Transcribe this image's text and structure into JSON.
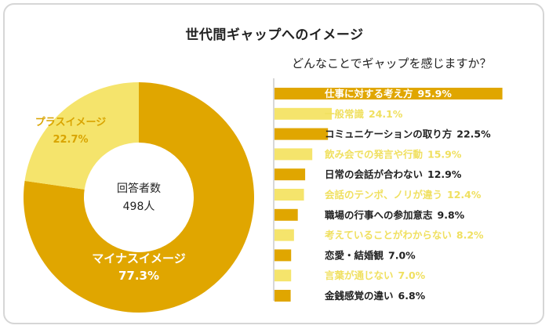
{
  "title": "世代間ギャップへのイメージ",
  "colors": {
    "dark": "#e0a600",
    "light": "#f5e46c",
    "darkText": "#ffffff",
    "lightLabelText": "#f5e46c",
    "centerText": "#222222",
    "axis": "#cccccc"
  },
  "chart_data": [
    {
      "type": "pie",
      "center_label": "回答者数",
      "center_value": "498人",
      "slices": [
        {
          "name": "マイナスイメージ",
          "value": 77.3,
          "label": "77.3%",
          "color": "#e0a600"
        },
        {
          "name": "プラスイメージ",
          "value": 22.7,
          "label": "22.7%",
          "color": "#f5e46c"
        }
      ]
    },
    {
      "type": "bar",
      "orientation": "horizontal",
      "subtitle": "どんなことでギャップを感じますか？",
      "xlim": [
        0,
        100
      ],
      "categories": [
        "仕事に対する考え方",
        "一般常識",
        "コミュニケーションの取り方",
        "飲み会での発言や行動",
        "日常の会話が合わない",
        "会話のテンポ、ノリが違う",
        "職場の行事への参加意志",
        "考えていることがわからない",
        "恋愛・結婚観",
        "言葉が通じない",
        "金銭感覚の違い"
      ],
      "values": [
        95.9,
        24.1,
        22.5,
        15.9,
        12.9,
        12.4,
        9.8,
        8.2,
        7.0,
        7.0,
        6.8
      ],
      "value_labels": [
        "95.9%",
        "24.1%",
        "22.5%",
        "15.9%",
        "12.9%",
        "12.4%",
        "9.8%",
        "8.2%",
        "7.0%",
        "7.0%",
        "6.8%"
      ],
      "bar_colors": [
        "#e0a600",
        "#f5e46c",
        "#e0a600",
        "#f5e46c",
        "#e0a600",
        "#f5e46c",
        "#e0a600",
        "#f5e46c",
        "#e0a600",
        "#f5e46c",
        "#e0a600"
      ]
    }
  ]
}
